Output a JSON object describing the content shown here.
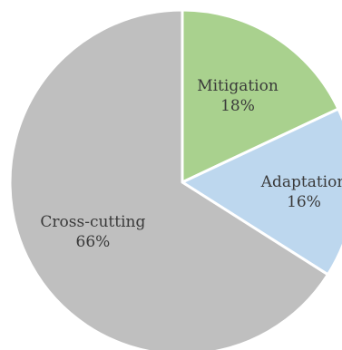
{
  "chart_data": {
    "type": "pie",
    "title": "",
    "slices": [
      {
        "label": "Mitigation",
        "value": 18,
        "value_label": "18%",
        "color": "#a9d18e"
      },
      {
        "label": "Adaptation",
        "value": 16,
        "value_label": "16%",
        "color": "#bdd7ee"
      },
      {
        "label": "Cross-cutting",
        "value": 66,
        "value_label": "66%",
        "color": "#bfbfbf"
      }
    ],
    "start_angle": "12 o'clock",
    "direction": "clockwise",
    "legend": "none"
  }
}
